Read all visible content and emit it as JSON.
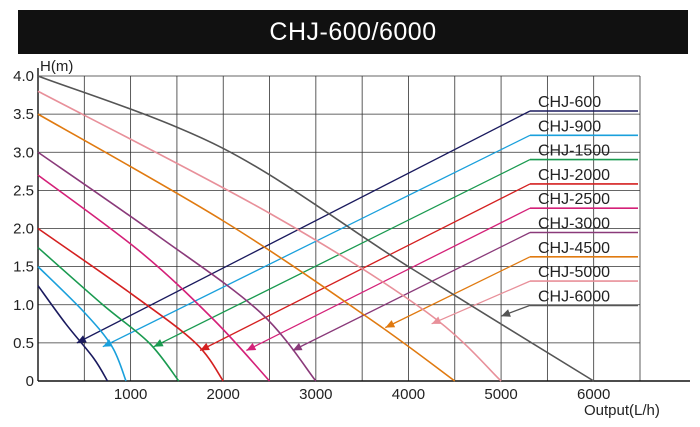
{
  "chart_data": {
    "type": "line",
    "title": "CHJ-600/6000",
    "xlabel": "Output(L/h)",
    "ylabel": "H(m)",
    "xlim": [
      0,
      6500
    ],
    "ylim": [
      0,
      4.0
    ],
    "x_ticks": [
      "1000",
      "2000",
      "3000",
      "4000",
      "5000",
      "6000"
    ],
    "y_ticks": [
      "0",
      "0.5",
      "1.0",
      "1.5",
      "2.0",
      "2.5",
      "3.0",
      "3.5",
      "4.0"
    ],
    "grid": true,
    "legend_position": "right",
    "series": [
      {
        "name": "CHJ-600",
        "color": "#1a1a5e",
        "points": [
          [
            0,
            1.25
          ],
          [
            300,
            0.75
          ],
          [
            600,
            0.3
          ],
          [
            750,
            0
          ]
        ],
        "arrow_at": [
          420,
          0.5
        ]
      },
      {
        "name": "CHJ-900",
        "color": "#1aa0dc",
        "points": [
          [
            0,
            1.5
          ],
          [
            500,
            0.9
          ],
          [
            800,
            0.45
          ],
          [
            950,
            0
          ]
        ],
        "arrow_at": [
          700,
          0.45
        ]
      },
      {
        "name": "CHJ-1500",
        "color": "#1a9a50",
        "points": [
          [
            0,
            1.75
          ],
          [
            700,
            1.0
          ],
          [
            1200,
            0.5
          ],
          [
            1520,
            0
          ]
        ],
        "arrow_at": [
          1250,
          0.45
        ]
      },
      {
        "name": "CHJ-2000",
        "color": "#d42020",
        "points": [
          [
            0,
            2.0
          ],
          [
            1000,
            1.15
          ],
          [
            1700,
            0.5
          ],
          [
            2000,
            0
          ]
        ],
        "arrow_at": [
          1750,
          0.4
        ]
      },
      {
        "name": "CHJ-2500",
        "color": "#d42078",
        "points": [
          [
            0,
            2.7
          ],
          [
            1100,
            1.7
          ],
          [
            1900,
            0.8
          ],
          [
            2500,
            0
          ]
        ],
        "arrow_at": [
          2250,
          0.4
        ]
      },
      {
        "name": "CHJ-3000",
        "color": "#8a3a7a",
        "points": [
          [
            0,
            3.0
          ],
          [
            1300,
            1.9
          ],
          [
            2400,
            0.9
          ],
          [
            3000,
            0
          ]
        ],
        "arrow_at": [
          2750,
          0.4
        ]
      },
      {
        "name": "CHJ-4500",
        "color": "#e07a10",
        "points": [
          [
            0,
            3.5
          ],
          [
            2000,
            2.1
          ],
          [
            3600,
            0.8
          ],
          [
            4500,
            0
          ]
        ],
        "arrow_at": [
          3750,
          0.7
        ]
      },
      {
        "name": "CHJ-5000",
        "color": "#e8909a",
        "points": [
          [
            0,
            3.8
          ],
          [
            2500,
            2.2
          ],
          [
            4200,
            0.9
          ],
          [
            5000,
            0
          ]
        ],
        "arrow_at": [
          4250,
          0.75
        ]
      },
      {
        "name": "CHJ-6000",
        "color": "#555555",
        "points": [
          [
            0,
            4.0
          ],
          [
            2000,
            3.05
          ],
          [
            4000,
            1.5
          ],
          [
            6000,
            0
          ]
        ],
        "arrow_at": [
          5000,
          0.85
        ]
      }
    ]
  }
}
